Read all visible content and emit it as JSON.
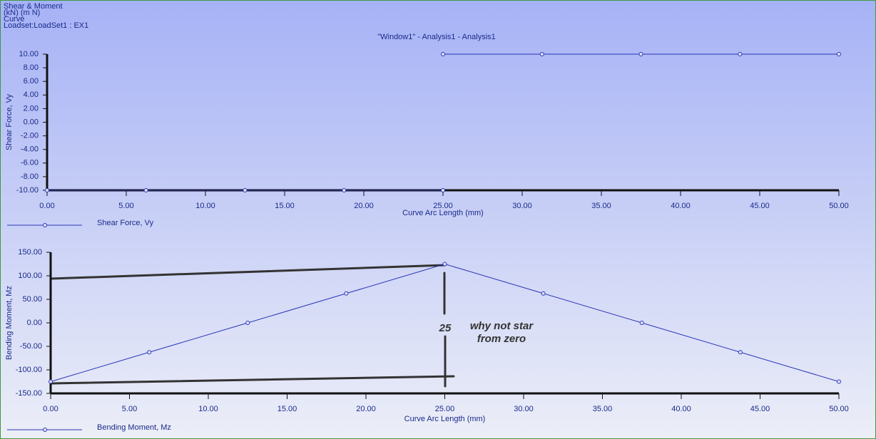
{
  "header": {
    "lines": [
      "Shear & Moment",
      "(kN)  (m N)",
      "Curve",
      "Loadset:LoadSet1 :  EX1"
    ]
  },
  "chart_data": [
    {
      "type": "line",
      "title": "\"Window1\" - Analysis1 - Analysis1",
      "x_label": "Curve Arc Length (mm)",
      "y_label": "Shear Force, Vy",
      "x": [
        0,
        6.25,
        12.5,
        18.75,
        25,
        null,
        25,
        31.25,
        37.5,
        43.75,
        50
      ],
      "series": [
        {
          "name": "Shear Force, Vy",
          "color": "#2a35b8",
          "values": [
            -10,
            -10,
            -10,
            -10,
            -10,
            null,
            10,
            10,
            10,
            10,
            10
          ]
        }
      ],
      "xlim": [
        0,
        50
      ],
      "xticks": [
        {
          "value": 0,
          "label": "0.00"
        },
        {
          "value": 5,
          "label": "5.00"
        },
        {
          "value": 10,
          "label": "10.00"
        },
        {
          "value": 15,
          "label": "15.00"
        },
        {
          "value": 20,
          "label": "20.00"
        },
        {
          "value": 25,
          "label": "25.00"
        },
        {
          "value": 30,
          "label": "30.00"
        },
        {
          "value": 35,
          "label": "35.00"
        },
        {
          "value": 40,
          "label": "40.00"
        },
        {
          "value": 45,
          "label": "45.00"
        },
        {
          "value": 50,
          "label": "50.00"
        }
      ],
      "ylim": [
        -10,
        10
      ],
      "yticks": [
        {
          "value": 10,
          "label": "10.00"
        },
        {
          "value": 8,
          "label": "8.00"
        },
        {
          "value": 6,
          "label": "6.00"
        },
        {
          "value": 4,
          "label": "4.00"
        },
        {
          "value": 2,
          "label": "2.00"
        },
        {
          "value": 0,
          "label": "0.00"
        },
        {
          "value": -2,
          "label": "-2.00"
        },
        {
          "value": -4,
          "label": "-4.00"
        },
        {
          "value": -6,
          "label": "-6.00"
        },
        {
          "value": -8,
          "label": "-8.00"
        },
        {
          "value": -10,
          "label": "-10.00"
        }
      ],
      "grid": false
    },
    {
      "type": "line",
      "x_label": "Curve Arc Length (mm)",
      "y_label": "Bending Moment, Mz",
      "x": [
        0,
        6.25,
        12.5,
        18.75,
        25,
        31.25,
        37.5,
        43.75,
        50
      ],
      "series": [
        {
          "name": "Bending Moment, Mz",
          "color": "#2a35b8",
          "values": [
            -125,
            -62.5,
            0,
            62.5,
            125,
            62.5,
            0,
            -62.5,
            -125
          ]
        }
      ],
      "xlim": [
        0,
        50
      ],
      "xticks": [
        {
          "value": 0,
          "label": "0.00"
        },
        {
          "value": 5,
          "label": "5.00"
        },
        {
          "value": 10,
          "label": "10.00"
        },
        {
          "value": 15,
          "label": "15.00"
        },
        {
          "value": 20,
          "label": "20.00"
        },
        {
          "value": 25,
          "label": "25.00"
        },
        {
          "value": 30,
          "label": "30.00"
        },
        {
          "value": 35,
          "label": "35.00"
        },
        {
          "value": 40,
          "label": "40.00"
        },
        {
          "value": 45,
          "label": "45.00"
        },
        {
          "value": 50,
          "label": "50.00"
        }
      ],
      "ylim": [
        -150,
        150
      ],
      "yticks": [
        {
          "value": 150,
          "label": "150.00"
        },
        {
          "value": 100,
          "label": "100.00"
        },
        {
          "value": 50,
          "label": "50.00"
        },
        {
          "value": 0,
          "label": "0.00"
        },
        {
          "value": -50,
          "label": "-50.00"
        },
        {
          "value": -100,
          "label": "-100.00"
        },
        {
          "value": -150,
          "label": "-150.00"
        }
      ],
      "grid": false,
      "annotations": [
        "25",
        "why not star",
        "from zero"
      ]
    }
  ]
}
